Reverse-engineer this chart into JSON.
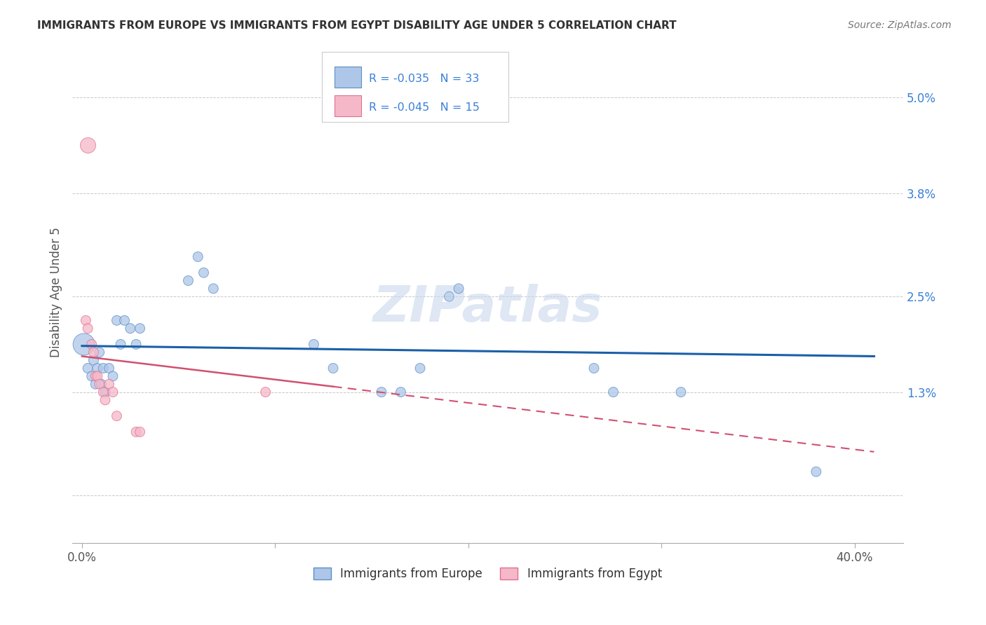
{
  "title": "IMMIGRANTS FROM EUROPE VS IMMIGRANTS FROM EGYPT DISABILITY AGE UNDER 5 CORRELATION CHART",
  "source": "Source: ZipAtlas.com",
  "ylabel": "Disability Age Under 5",
  "yticks": [
    0.0,
    0.013,
    0.025,
    0.038,
    0.05
  ],
  "ytick_labels": [
    "",
    "1.3%",
    "2.5%",
    "3.8%",
    "5.0%"
  ],
  "xticks": [
    0.0,
    0.1,
    0.2,
    0.3,
    0.4
  ],
  "xtick_labels": [
    "0.0%",
    "",
    "",
    "",
    "40.0%"
  ],
  "xlim": [
    -0.005,
    0.425
  ],
  "ylim": [
    -0.006,
    0.057
  ],
  "europe_color": "#aec6e8",
  "egypt_color": "#f5b8c8",
  "europe_edge_color": "#5b8fc4",
  "egypt_edge_color": "#e07090",
  "europe_line_color": "#1a5fa8",
  "egypt_line_color": "#d05070",
  "legend_europe_R": "R = -0.035",
  "legend_europe_N": "N = 33",
  "legend_egypt_R": "R = -0.045",
  "legend_egypt_N": "N = 15",
  "europe_scatter_x": [
    0.001,
    0.003,
    0.005,
    0.006,
    0.007,
    0.008,
    0.009,
    0.01,
    0.011,
    0.012,
    0.014,
    0.016,
    0.018,
    0.02,
    0.022,
    0.025,
    0.028,
    0.03,
    0.055,
    0.06,
    0.063,
    0.068,
    0.12,
    0.13,
    0.155,
    0.165,
    0.175,
    0.19,
    0.195,
    0.265,
    0.275,
    0.31,
    0.38
  ],
  "europe_scatter_y": [
    0.019,
    0.016,
    0.015,
    0.017,
    0.014,
    0.016,
    0.018,
    0.014,
    0.016,
    0.013,
    0.016,
    0.015,
    0.022,
    0.019,
    0.022,
    0.021,
    0.019,
    0.021,
    0.027,
    0.03,
    0.028,
    0.026,
    0.019,
    0.016,
    0.013,
    0.013,
    0.016,
    0.025,
    0.026,
    0.016,
    0.013,
    0.013,
    0.003
  ],
  "europe_scatter_sizes": [
    500,
    100,
    100,
    100,
    100,
    100,
    100,
    100,
    100,
    100,
    100,
    100,
    100,
    100,
    100,
    100,
    100,
    100,
    100,
    100,
    100,
    100,
    100,
    100,
    100,
    100,
    100,
    100,
    100,
    100,
    100,
    100,
    100
  ],
  "egypt_scatter_x": [
    0.002,
    0.003,
    0.005,
    0.006,
    0.007,
    0.008,
    0.009,
    0.011,
    0.012,
    0.014,
    0.016,
    0.018,
    0.028,
    0.03,
    0.095
  ],
  "egypt_scatter_y": [
    0.022,
    0.021,
    0.019,
    0.018,
    0.015,
    0.015,
    0.014,
    0.013,
    0.012,
    0.014,
    0.013,
    0.01,
    0.008,
    0.008,
    0.013
  ],
  "egypt_scatter_sizes": [
    100,
    100,
    100,
    100,
    100,
    100,
    100,
    100,
    100,
    100,
    100,
    100,
    100,
    100,
    100
  ],
  "egypt_big_x": [
    0.003
  ],
  "egypt_big_y": [
    0.044
  ],
  "egypt_big_sizes": [
    250
  ],
  "watermark": "ZIPatlas",
  "grid_color": "#c8c8c8",
  "bg_color": "#ffffff",
  "europe_trendline_start_y": 0.0188,
  "europe_trendline_end_y": 0.0175,
  "egypt_trendline_start_y": 0.0175,
  "egypt_trendline_end_y": 0.0055
}
